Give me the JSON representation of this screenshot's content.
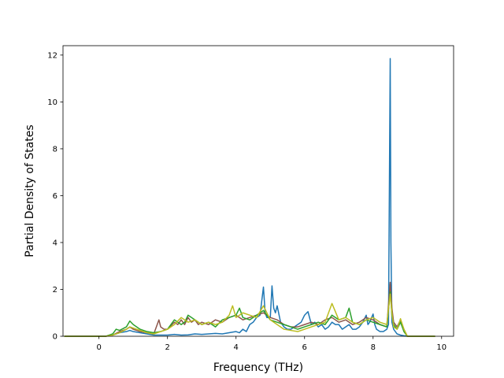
{
  "chart_data": {
    "type": "line",
    "xlabel": "Frequency (THz)",
    "ylabel": "Partial Density of States",
    "xlim": [
      -1.05,
      10.35
    ],
    "ylim": [
      0,
      12.4
    ],
    "xticks": [
      0,
      2,
      4,
      6,
      8,
      10
    ],
    "yticks": [
      0,
      2,
      4,
      6,
      8,
      10,
      12
    ],
    "grid": false,
    "legend": "none",
    "series": [
      {
        "color": "#1f77b4",
        "x": [
          -1.0,
          0.2,
          0.4,
          0.6,
          0.8,
          0.9,
          1.0,
          1.2,
          1.4,
          1.6,
          1.8,
          2.0,
          2.2,
          2.4,
          2.6,
          2.8,
          3.0,
          3.2,
          3.4,
          3.6,
          3.8,
          4.0,
          4.1,
          4.2,
          4.3,
          4.4,
          4.5,
          4.6,
          4.7,
          4.8,
          4.85,
          4.9,
          5.0,
          5.05,
          5.1,
          5.15,
          5.2,
          5.3,
          5.4,
          5.5,
          5.6,
          5.7,
          5.8,
          5.9,
          6.0,
          6.1,
          6.2,
          6.3,
          6.4,
          6.5,
          6.6,
          6.7,
          6.8,
          6.9,
          7.0,
          7.1,
          7.2,
          7.3,
          7.4,
          7.5,
          7.6,
          7.7,
          7.8,
          7.85,
          7.9,
          8.0,
          8.05,
          8.1,
          8.2,
          8.3,
          8.4,
          8.45,
          8.5,
          8.52,
          8.55,
          8.6,
          8.7,
          8.8,
          8.9,
          9.0,
          9.5,
          9.8
        ],
        "y": [
          0,
          0,
          0.05,
          0.15,
          0.2,
          0.25,
          0.2,
          0.15,
          0.1,
          0.05,
          0.05,
          0.05,
          0.08,
          0.05,
          0.06,
          0.1,
          0.08,
          0.1,
          0.12,
          0.1,
          0.15,
          0.2,
          0.15,
          0.3,
          0.2,
          0.5,
          0.6,
          0.8,
          0.9,
          2.1,
          1.0,
          0.8,
          0.8,
          2.15,
          1.2,
          1.0,
          1.3,
          0.6,
          0.4,
          0.3,
          0.3,
          0.4,
          0.5,
          0.6,
          0.9,
          1.05,
          0.5,
          0.6,
          0.4,
          0.5,
          0.3,
          0.4,
          0.6,
          0.5,
          0.5,
          0.3,
          0.4,
          0.5,
          0.3,
          0.3,
          0.4,
          0.6,
          0.9,
          0.5,
          0.6,
          0.95,
          0.5,
          0.3,
          0.2,
          0.2,
          0.3,
          0.5,
          11.85,
          4.0,
          0.6,
          0.3,
          0.1,
          0.05,
          0.02,
          0,
          0,
          0
        ]
      },
      {
        "color": "#8c564b",
        "x": [
          -1.0,
          0.2,
          0.4,
          0.6,
          0.8,
          0.9,
          1.0,
          1.2,
          1.4,
          1.6,
          1.75,
          1.8,
          1.9,
          2.0,
          2.2,
          2.3,
          2.4,
          2.5,
          2.6,
          2.7,
          2.8,
          2.9,
          3.0,
          3.2,
          3.4,
          3.6,
          3.8,
          4.0,
          4.2,
          4.4,
          4.6,
          4.8,
          5.0,
          5.2,
          5.4,
          5.6,
          5.8,
          6.0,
          6.2,
          6.4,
          6.6,
          6.8,
          7.0,
          7.2,
          7.4,
          7.6,
          7.8,
          8.0,
          8.2,
          8.4,
          8.5,
          8.55,
          8.6,
          8.7,
          8.8,
          8.9,
          9.0,
          9.8
        ],
        "y": [
          0,
          0,
          0.05,
          0.2,
          0.3,
          0.4,
          0.3,
          0.2,
          0.15,
          0.1,
          0.7,
          0.4,
          0.3,
          0.3,
          0.6,
          0.5,
          0.7,
          0.5,
          0.8,
          0.6,
          0.7,
          0.5,
          0.6,
          0.5,
          0.7,
          0.6,
          0.8,
          0.9,
          0.7,
          0.8,
          0.9,
          1.0,
          0.8,
          0.7,
          0.5,
          0.4,
          0.4,
          0.5,
          0.6,
          0.5,
          0.7,
          0.8,
          0.6,
          0.7,
          0.5,
          0.6,
          0.8,
          0.7,
          0.5,
          0.4,
          2.3,
          1.2,
          0.6,
          0.4,
          0.7,
          0.3,
          0,
          0
        ]
      },
      {
        "color": "#2ca02c",
        "x": [
          -1.0,
          0.2,
          0.4,
          0.5,
          0.6,
          0.8,
          0.9,
          1.0,
          1.1,
          1.2,
          1.4,
          1.6,
          1.8,
          2.0,
          2.2,
          2.4,
          2.5,
          2.6,
          2.8,
          3.0,
          3.2,
          3.4,
          3.6,
          3.8,
          4.0,
          4.1,
          4.2,
          4.4,
          4.6,
          4.8,
          4.9,
          5.0,
          5.2,
          5.4,
          5.6,
          5.8,
          6.0,
          6.2,
          6.4,
          6.6,
          6.8,
          7.0,
          7.2,
          7.3,
          7.4,
          7.6,
          7.8,
          8.0,
          8.2,
          8.4,
          8.5,
          8.55,
          8.6,
          8.7,
          8.8,
          8.9,
          9.0,
          9.8
        ],
        "y": [
          0,
          0,
          0.1,
          0.3,
          0.25,
          0.4,
          0.65,
          0.5,
          0.4,
          0.3,
          0.2,
          0.15,
          0.2,
          0.3,
          0.7,
          0.5,
          0.6,
          0.9,
          0.7,
          0.5,
          0.6,
          0.4,
          0.7,
          0.8,
          0.9,
          1.2,
          0.8,
          0.7,
          0.9,
          1.1,
          0.9,
          0.7,
          0.6,
          0.5,
          0.4,
          0.3,
          0.4,
          0.5,
          0.6,
          0.5,
          0.9,
          0.7,
          0.8,
          1.2,
          0.6,
          0.5,
          0.7,
          0.6,
          0.5,
          0.4,
          1.9,
          0.9,
          0.5,
          0.3,
          0.6,
          0.2,
          0,
          0
        ]
      },
      {
        "color": "#bcbd22",
        "x": [
          -1.0,
          0.2,
          0.4,
          0.6,
          0.8,
          0.9,
          1.0,
          1.2,
          1.4,
          1.6,
          1.8,
          2.0,
          2.2,
          2.4,
          2.6,
          2.8,
          3.0,
          3.2,
          3.4,
          3.6,
          3.8,
          3.9,
          4.0,
          4.2,
          4.4,
          4.6,
          4.8,
          5.0,
          5.2,
          5.4,
          5.6,
          5.8,
          6.0,
          6.2,
          6.4,
          6.6,
          6.8,
          7.0,
          7.2,
          7.4,
          7.6,
          7.8,
          8.0,
          8.2,
          8.4,
          8.5,
          8.55,
          8.6,
          8.7,
          8.8,
          8.9,
          9.0,
          9.8
        ],
        "y": [
          0,
          0,
          0.05,
          0.15,
          0.3,
          0.4,
          0.35,
          0.25,
          0.15,
          0.1,
          0.2,
          0.3,
          0.5,
          0.8,
          0.6,
          0.7,
          0.5,
          0.6,
          0.5,
          0.6,
          0.9,
          1.3,
          0.8,
          1.0,
          0.9,
          0.8,
          1.3,
          0.7,
          0.5,
          0.3,
          0.25,
          0.2,
          0.3,
          0.4,
          0.5,
          0.6,
          1.4,
          0.7,
          0.8,
          0.6,
          0.5,
          0.7,
          0.8,
          0.6,
          0.5,
          1.8,
          1.0,
          0.4,
          0.3,
          0.75,
          0.3,
          0,
          0
        ]
      }
    ]
  }
}
